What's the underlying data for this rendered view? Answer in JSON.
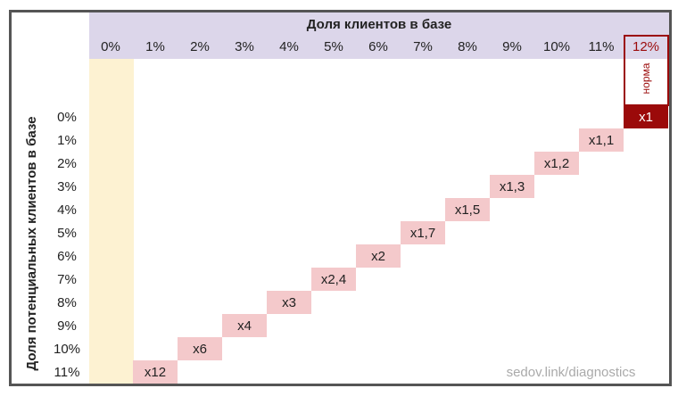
{
  "header": {
    "title": "Доля клиентов в базе",
    "columns": [
      "0%",
      "1%",
      "2%",
      "3%",
      "4%",
      "5%",
      "6%",
      "7%",
      "8%",
      "9%",
      "10%",
      "11%",
      "12%"
    ]
  },
  "side": {
    "title": "Доля потенциальных клиентов в базе",
    "rows": [
      "0%",
      "1%",
      "2%",
      "3%",
      "4%",
      "5%",
      "6%",
      "7%",
      "8%",
      "9%",
      "10%",
      "11%"
    ]
  },
  "norm": "норма",
  "diagonal": [
    "x1",
    "x1,1",
    "x1,2",
    "x1,3",
    "x1,5",
    "x1,7",
    "x2",
    "x2,4",
    "x3",
    "x4",
    "x6",
    "x12"
  ],
  "footer": "sedov.link/diagnostics"
}
